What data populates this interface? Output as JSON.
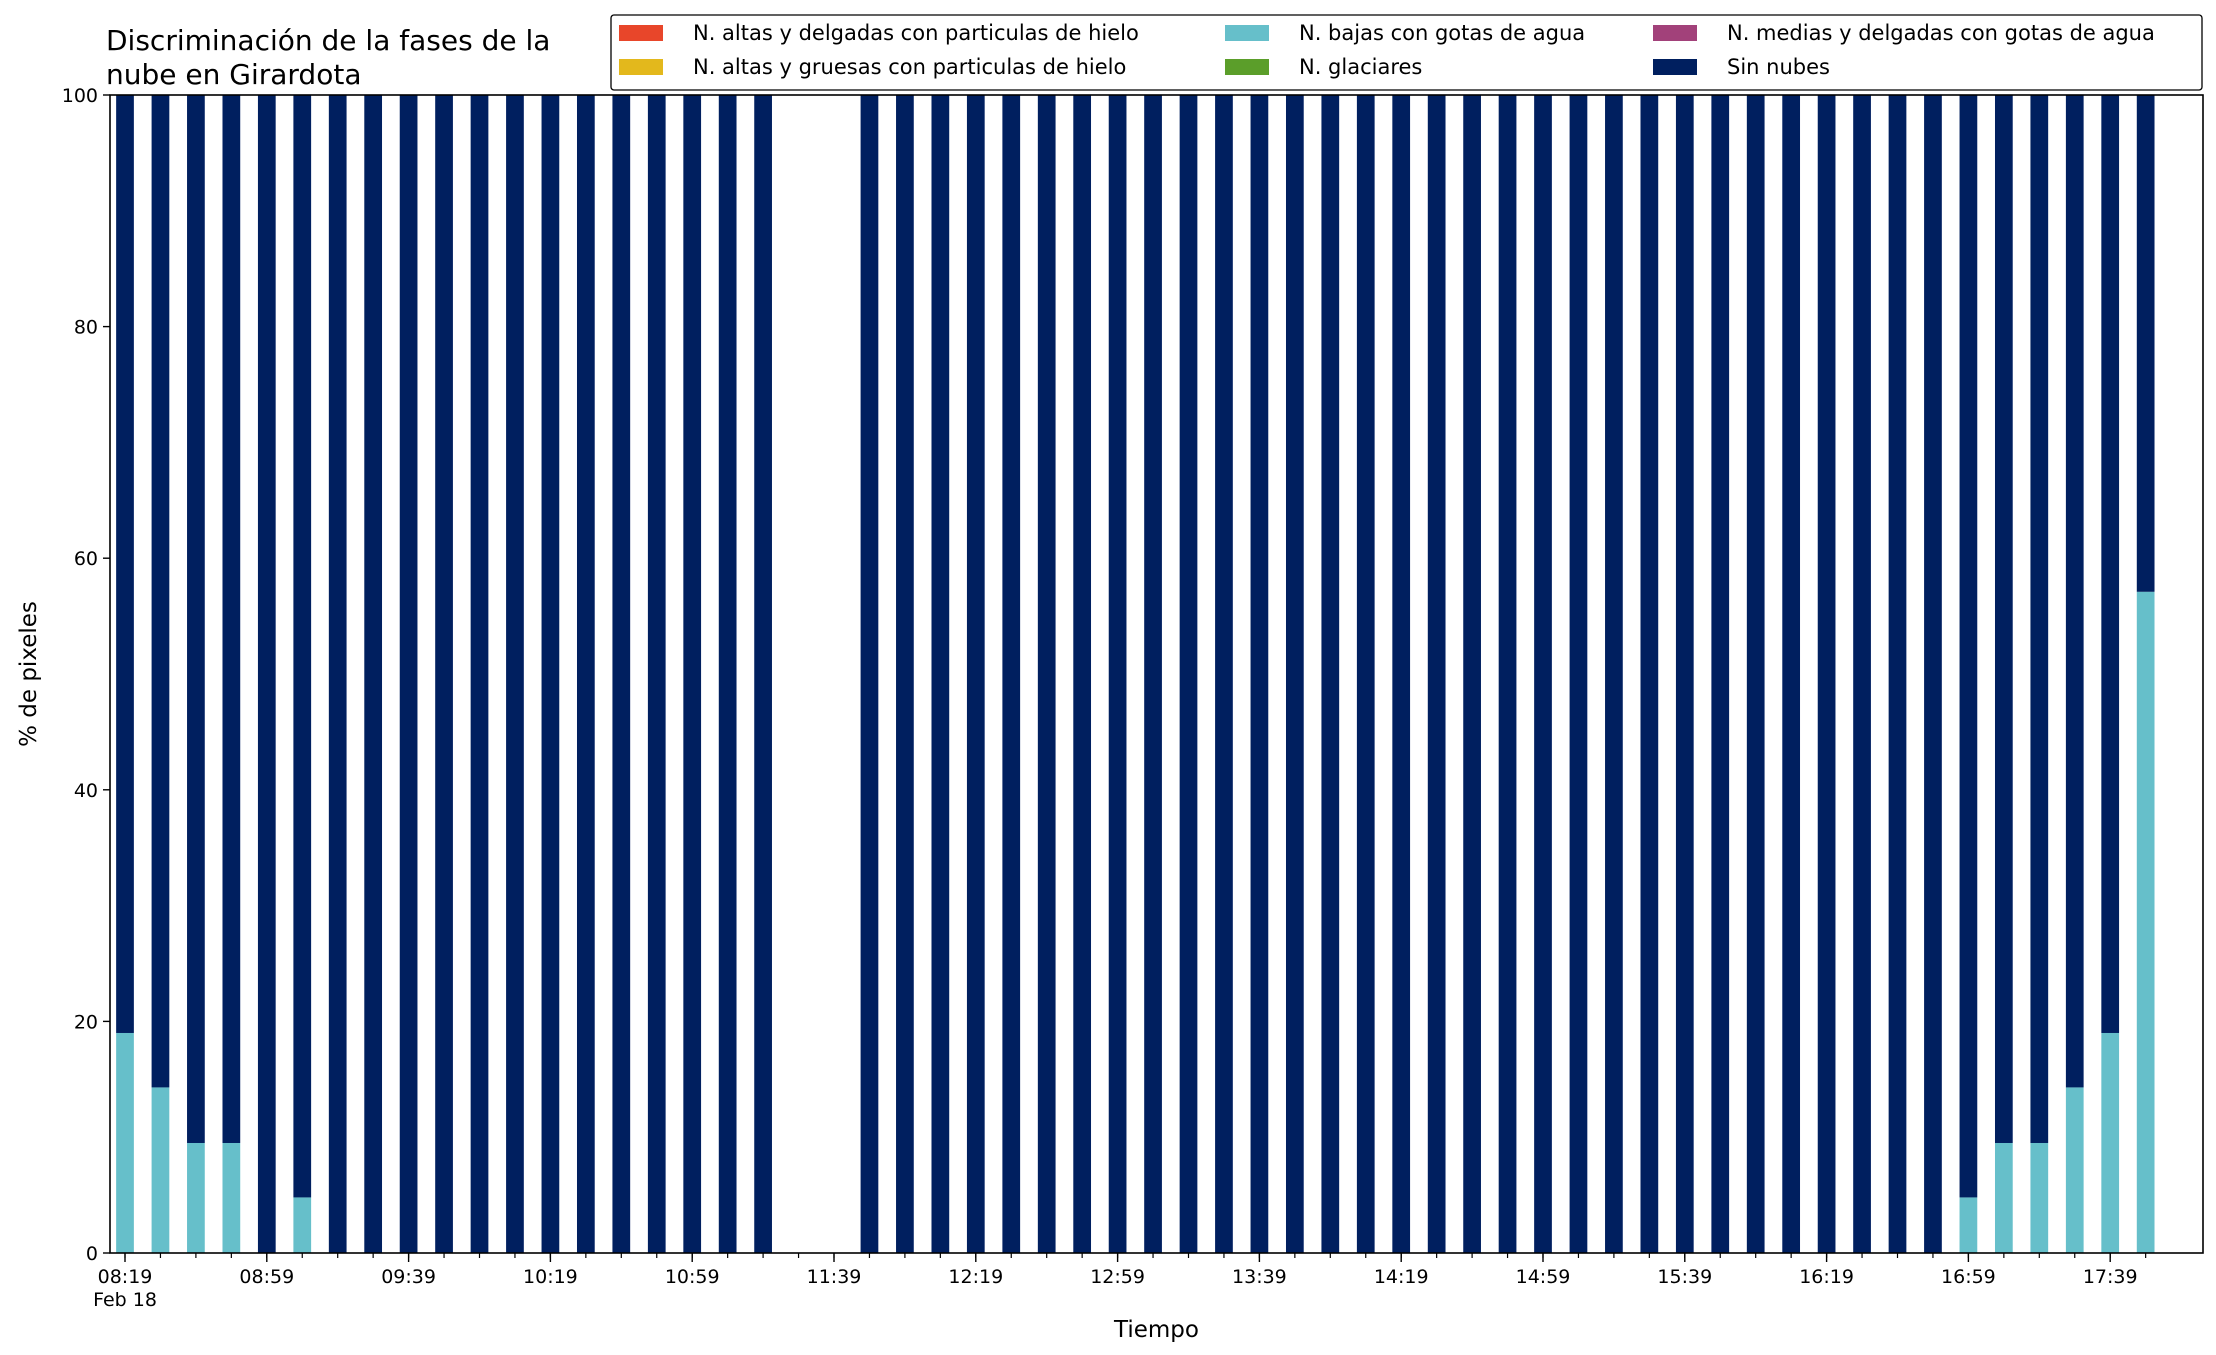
{
  "chart_data": {
    "type": "bar",
    "stacked": true,
    "title_lines": [
      "Discriminación de la fases de la",
      "nube en Girardota"
    ],
    "xlabel": "Tiempo",
    "ylabel": "% de pixeles",
    "ylim": [
      0,
      100
    ],
    "yticks": [
      0,
      20,
      40,
      60,
      80,
      100
    ],
    "grid": false,
    "legend_position": "top-right",
    "x": [
      "08:19",
      "08:29",
      "08:39",
      "08:49",
      "08:59",
      "09:09",
      "09:19",
      "09:29",
      "09:39",
      "09:49",
      "09:59",
      "10:09",
      "10:19",
      "10:29",
      "10:39",
      "10:49",
      "10:59",
      "11:09",
      "11:19",
      "11:29",
      "11:39",
      "11:49",
      "11:59",
      "12:09",
      "12:19",
      "12:29",
      "12:39",
      "12:49",
      "12:59",
      "13:09",
      "13:19",
      "13:29",
      "13:39",
      "13:49",
      "13:59",
      "14:09",
      "14:19",
      "14:29",
      "14:39",
      "14:49",
      "14:59",
      "15:09",
      "15:19",
      "15:29",
      "15:39",
      "15:49",
      "15:59",
      "16:09",
      "16:19",
      "16:29",
      "16:39",
      "16:49",
      "16:59",
      "17:09",
      "17:19",
      "17:29",
      "17:39",
      "17:49"
    ],
    "xtick_labels": [
      {
        "x": "08:19",
        "label": "08:19",
        "sublabel": "Feb 18"
      },
      {
        "x": "08:59",
        "label": "08:59"
      },
      {
        "x": "09:39",
        "label": "09:39"
      },
      {
        "x": "10:19",
        "label": "10:19"
      },
      {
        "x": "10:59",
        "label": "10:59"
      },
      {
        "x": "11:39",
        "label": "11:39"
      },
      {
        "x": "12:19",
        "label": "12:19"
      },
      {
        "x": "12:59",
        "label": "12:59"
      },
      {
        "x": "13:39",
        "label": "13:39"
      },
      {
        "x": "14:19",
        "label": "14:19"
      },
      {
        "x": "14:59",
        "label": "14:59"
      },
      {
        "x": "15:39",
        "label": "15:39"
      },
      {
        "x": "16:19",
        "label": "16:19"
      },
      {
        "x": "16:59",
        "label": "16:59"
      },
      {
        "x": "17:39",
        "label": "17:39"
      }
    ],
    "series": [
      {
        "name": "N. altas y delgadas con particulas de hielo",
        "color": "#e8462a",
        "values": [
          0,
          0,
          0,
          0,
          0,
          0,
          0,
          0,
          0,
          0,
          0,
          0,
          0,
          0,
          0,
          0,
          0,
          0,
          0,
          0,
          0,
          0,
          0,
          0,
          0,
          0,
          0,
          0,
          0,
          0,
          0,
          0,
          0,
          0,
          0,
          0,
          0,
          0,
          0,
          0,
          0,
          0,
          0,
          0,
          0,
          0,
          0,
          0,
          0,
          0,
          0,
          0,
          0,
          0,
          0,
          0,
          0,
          0
        ]
      },
      {
        "name": "N. altas y gruesas con particulas de hielo",
        "color": "#e3b81c",
        "values": [
          0,
          0,
          0,
          0,
          0,
          0,
          0,
          0,
          0,
          0,
          0,
          0,
          0,
          0,
          0,
          0,
          0,
          0,
          0,
          0,
          0,
          0,
          0,
          0,
          0,
          0,
          0,
          0,
          0,
          0,
          0,
          0,
          0,
          0,
          0,
          0,
          0,
          0,
          0,
          0,
          0,
          0,
          0,
          0,
          0,
          0,
          0,
          0,
          0,
          0,
          0,
          0,
          0,
          0,
          0,
          0,
          0,
          0
        ]
      },
      {
        "name": "N. bajas con gotas de agua",
        "color": "#66bfca",
        "values": [
          19,
          14.3,
          9.5,
          9.5,
          0,
          4.8,
          0,
          0,
          0,
          0,
          0,
          0,
          0,
          0,
          0,
          0,
          0,
          0,
          0,
          null,
          null,
          0,
          0,
          0,
          0,
          0,
          0,
          0,
          0,
          0,
          0,
          0,
          0,
          0,
          0,
          0,
          0,
          0,
          0,
          0,
          0,
          0,
          0,
          0,
          0,
          0,
          0,
          0,
          0,
          0,
          0,
          0,
          4.8,
          9.5,
          9.5,
          14.3,
          19,
          57.1
        ]
      },
      {
        "name": "N. glaciares",
        "color": "#5b9e2a",
        "values": [
          0,
          0,
          0,
          0,
          0,
          0,
          0,
          0,
          0,
          0,
          0,
          0,
          0,
          0,
          0,
          0,
          0,
          0,
          0,
          null,
          null,
          0,
          0,
          0,
          0,
          0,
          0,
          0,
          0,
          0,
          0,
          0,
          0,
          0,
          0,
          0,
          0,
          0,
          0,
          0,
          0,
          0,
          0,
          0,
          0,
          0,
          0,
          0,
          0,
          0,
          0,
          0,
          0,
          0,
          0,
          0,
          0,
          0
        ]
      },
      {
        "name": "N. medias y delgadas con gotas de agua",
        "color": "#a2417a",
        "values": [
          0,
          0,
          0,
          0,
          0,
          0,
          0,
          0,
          0,
          0,
          0,
          0,
          0,
          0,
          0,
          0,
          0,
          0,
          0,
          null,
          null,
          0,
          0,
          0,
          0,
          0,
          0,
          0,
          0,
          0,
          0,
          0,
          0,
          0,
          0,
          0,
          0,
          0,
          0,
          0,
          0,
          0,
          0,
          0,
          0,
          0,
          0,
          0,
          0,
          0,
          0,
          0,
          0,
          0,
          0,
          0,
          0,
          0
        ]
      },
      {
        "name": "Sin nubes",
        "color": "#001f5f",
        "values": [
          81,
          85.7,
          90.5,
          90.5,
          100,
          95.2,
          100,
          100,
          100,
          100,
          100,
          100,
          100,
          100,
          100,
          100,
          100,
          100,
          100,
          null,
          null,
          100,
          100,
          100,
          100,
          100,
          100,
          100,
          100,
          100,
          100,
          100,
          100,
          100,
          100,
          100,
          100,
          100,
          100,
          100,
          100,
          100,
          100,
          100,
          100,
          100,
          100,
          100,
          100,
          100,
          100,
          100,
          95.2,
          90.5,
          90.5,
          85.7,
          81,
          42.9
        ]
      }
    ],
    "legend_layout": [
      [
        "N. altas y delgadas con particulas de hielo",
        "N. bajas con gotas de agua",
        "N. medias y delgadas con gotas de agua"
      ],
      [
        "N. altas y gruesas con particulas de hielo",
        "N. glaciares",
        "Sin nubes"
      ]
    ]
  }
}
